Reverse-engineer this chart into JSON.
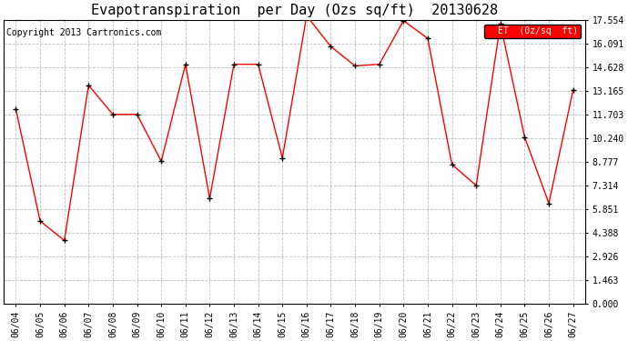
{
  "title": "Evapotranspiration  per Day (Ozs sq/ft)  20130628",
  "copyright": "Copyright 2013 Cartronics.com",
  "legend_label": "ET  (0z/sq  ft)",
  "dates": [
    "06/04",
    "06/05",
    "06/06",
    "06/07",
    "06/08",
    "06/09",
    "06/10",
    "06/11",
    "06/12",
    "06/13",
    "06/14",
    "06/15",
    "06/16",
    "06/17",
    "06/18",
    "06/19",
    "06/20",
    "06/21",
    "06/22",
    "06/23",
    "06/24",
    "06/25",
    "06/26",
    "06/27"
  ],
  "et_values": [
    12.0,
    5.1,
    3.9,
    13.5,
    11.7,
    11.7,
    8.8,
    14.8,
    6.5,
    14.8,
    14.8,
    9.0,
    17.8,
    15.9,
    14.7,
    14.8,
    17.5,
    16.4,
    8.6,
    7.3,
    17.3,
    10.3,
    6.2,
    13.2
  ],
  "y_ticks": [
    0.0,
    1.463,
    2.926,
    4.388,
    5.851,
    7.314,
    8.777,
    10.24,
    11.703,
    13.165,
    14.628,
    16.091,
    17.554
  ],
  "ylim": [
    0.0,
    17.554
  ],
  "line_color": "red",
  "marker_color": "black",
  "bg_color": "#ffffff",
  "grid_color": "#b0b0b0",
  "legend_bg": "red",
  "legend_text_color": "white",
  "title_fontsize": 11,
  "copyright_fontsize": 7,
  "tick_fontsize": 7,
  "ytick_fontsize": 7
}
